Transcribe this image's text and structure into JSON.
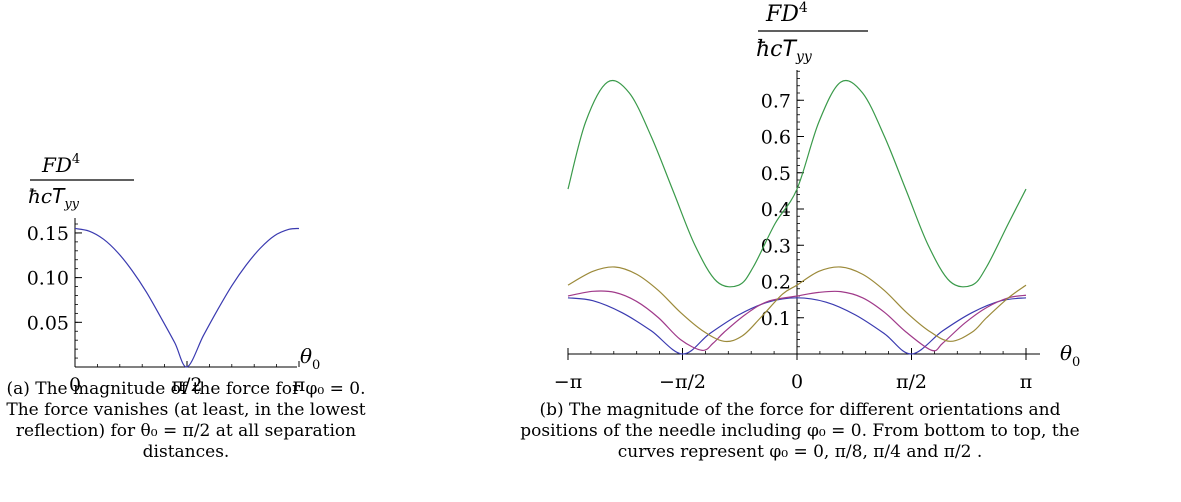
{
  "chart_data": [
    {
      "type": "line",
      "ylabel": {
        "num": "FD",
        "num_sup": "4",
        "den_a": "ħc",
        "den_b": "T",
        "den_sub": "yy"
      },
      "xlabel": {
        "base": "θ",
        "sub": "0"
      },
      "xlim": [
        0,
        3.1416
      ],
      "ylim": [
        0,
        0.16
      ],
      "xtick_labels": [
        "0",
        "π/2",
        "π"
      ],
      "ytick_labels": [
        "0.05",
        "0.10",
        "0.15"
      ],
      "ytick_values": [
        0.05,
        0.1,
        0.15
      ],
      "series": [
        {
          "color": "#3a3ab0",
          "x": [
            0,
            0.2,
            0.4,
            0.6,
            0.8,
            1.0,
            1.2,
            1.4,
            1.5708,
            1.8,
            2.0,
            2.2,
            2.4,
            2.6,
            2.8,
            3.0,
            3.1416
          ],
          "y": [
            0.155,
            0.152,
            0.143,
            0.128,
            0.108,
            0.084,
            0.056,
            0.027,
            0.0,
            0.035,
            0.064,
            0.091,
            0.114,
            0.133,
            0.147,
            0.154,
            0.155
          ]
        }
      ],
      "caption": [
        "(a) The magnitude of the force for φ₀ = 0.",
        "The force vanishes (at least, in the lowest",
        "reflection) for θ₀ = π/2 at all separation",
        "distances."
      ]
    },
    {
      "type": "line",
      "ylabel": {
        "num": "FD",
        "num_sup": "4",
        "den_a": "ħc",
        "den_b": "T",
        "den_sub": "yy"
      },
      "xlabel": {
        "base": "θ",
        "sub": "0"
      },
      "xlim": [
        -3.1416,
        3.1416
      ],
      "ylim": [
        0,
        0.8
      ],
      "xtick_labels": [
        "−π",
        "−π/2",
        "0",
        "π/2",
        "π"
      ],
      "ytick_labels": [
        "0.1",
        "0.2",
        "0.3",
        "0.4",
        "0.5",
        "0.6",
        "0.7"
      ],
      "ytick_values": [
        0.1,
        0.2,
        0.3,
        0.4,
        0.5,
        0.6,
        0.7
      ],
      "series": [
        {
          "color": "#3a3ab0",
          "x": [
            -3.1416,
            -2.8,
            -2.4,
            -2.0,
            -1.5708,
            -1.2,
            -0.8,
            -0.4,
            0.0,
            0.4,
            0.8,
            1.2,
            1.5708,
            2.0,
            2.4,
            2.8,
            3.1416
          ],
          "y": [
            0.155,
            0.147,
            0.114,
            0.064,
            0.0,
            0.056,
            0.108,
            0.143,
            0.155,
            0.143,
            0.108,
            0.056,
            0.0,
            0.064,
            0.114,
            0.147,
            0.155
          ]
        },
        {
          "color": "#a03a8a",
          "x": [
            -3.1416,
            -2.8,
            -2.5,
            -2.2,
            -1.9,
            -1.6,
            -1.3,
            -1.15,
            -1.0,
            -0.7,
            -0.4,
            0.0,
            0.3,
            0.6,
            0.9,
            1.2,
            1.5,
            1.85,
            2.0,
            2.3,
            2.6,
            2.9,
            3.1416
          ],
          "y": [
            0.16,
            0.173,
            0.17,
            0.145,
            0.1,
            0.04,
            0.01,
            0.03,
            0.06,
            0.11,
            0.145,
            0.16,
            0.17,
            0.172,
            0.155,
            0.115,
            0.06,
            0.01,
            0.03,
            0.085,
            0.128,
            0.155,
            0.162
          ]
        },
        {
          "color": "#9c8a3a",
          "x": [
            -3.1416,
            -2.8,
            -2.5,
            -2.2,
            -1.9,
            -1.6,
            -1.3,
            -1.0,
            -0.75,
            -0.5,
            -0.2,
            0.0,
            0.3,
            0.6,
            0.9,
            1.2,
            1.5,
            1.8,
            2.1,
            2.4,
            2.6,
            2.9,
            3.1416
          ],
          "y": [
            0.19,
            0.228,
            0.24,
            0.22,
            0.175,
            0.115,
            0.065,
            0.035,
            0.05,
            0.1,
            0.165,
            0.19,
            0.228,
            0.24,
            0.22,
            0.175,
            0.115,
            0.065,
            0.035,
            0.06,
            0.1,
            0.155,
            0.19
          ]
        },
        {
          "color": "#3a9a4a",
          "x": [
            -3.1416,
            -2.9,
            -2.6,
            -2.3,
            -2.0,
            -1.7,
            -1.4,
            -1.1,
            -0.8,
            -0.6,
            -0.3,
            0.0,
            0.3,
            0.6,
            0.9,
            1.2,
            1.5,
            1.8,
            2.1,
            2.4,
            2.6,
            2.9,
            3.1416
          ],
          "y": [
            0.455,
            0.64,
            0.75,
            0.72,
            0.6,
            0.45,
            0.3,
            0.2,
            0.19,
            0.24,
            0.36,
            0.455,
            0.64,
            0.75,
            0.72,
            0.6,
            0.45,
            0.3,
            0.2,
            0.19,
            0.24,
            0.36,
            0.455
          ]
        }
      ],
      "caption": [
        "(b) The magnitude of the force for different orientations and",
        "positions of the needle including φ₀ = 0. From bottom to top, the",
        "curves represent φ₀ = 0, π/8, π/4 and π/2 ."
      ]
    }
  ]
}
